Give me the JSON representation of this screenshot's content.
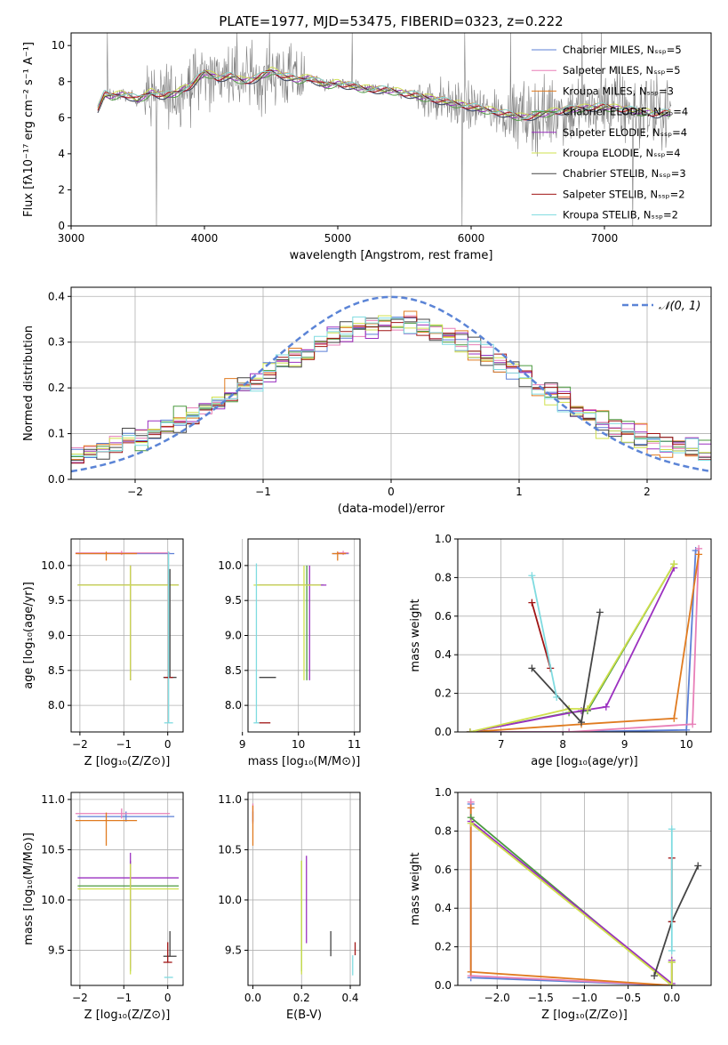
{
  "figure": {
    "title": "PLATE=1977, MJD=53475, FIBERID=0323, z=0.222"
  },
  "series_colors": [
    "#5b7fd6",
    "#e87fb8",
    "#e07b20",
    "#4b9a3f",
    "#9b30c0",
    "#cfe04c",
    "#444444",
    "#a01515",
    "#7fdbe0"
  ],
  "chart_data": [
    {
      "id": "spectrum",
      "type": "line",
      "xlabel": "wavelength [Angstrom, rest frame]",
      "ylabel": "Flux [fλ10⁻¹⁷ erg cm⁻² s⁻¹ A⁻¹]",
      "xlim": [
        3000,
        7800
      ],
      "ylim": [
        0,
        10.7
      ],
      "xticks": [
        3000,
        4000,
        5000,
        6000,
        7000
      ],
      "yticks": [
        0,
        2,
        4,
        6,
        8,
        10
      ],
      "grid": false,
      "legend_position": "right",
      "legend": [
        "Chabrier MILES, Nₛₛₚ=5",
        "Salpeter MILES, Nₛₛₚ=5",
        "Kroupa MILES, Nₛₛₚ=3",
        "Chabrier ELODIE, Nₛₛₚ=4",
        "Salpeter ELODIE, Nₛₛₚ=4",
        "Kroupa ELODIE, Nₛₛₚ=4",
        "Chabrier STELIB, Nₛₛₚ=3",
        "Salpeter STELIB, Nₛₛₚ=2",
        "Kroupa STELIB, Nₛₛₚ=2"
      ],
      "model_continuum": {
        "x": [
          3200,
          3250,
          3300,
          3400,
          3500,
          3600,
          3700,
          3800,
          3900,
          4000,
          4100,
          4200,
          4300,
          4400,
          4500,
          4600,
          4700,
          4800,
          4900,
          5000,
          5200,
          5400,
          5600,
          5800,
          6000,
          6200,
          6400,
          6600,
          6800,
          7000,
          7200,
          7400,
          7500
        ],
        "y": [
          6.5,
          7.3,
          7.2,
          7.3,
          7.0,
          7.4,
          7.2,
          7.4,
          7.8,
          8.5,
          8.2,
          8.3,
          8.0,
          8.2,
          8.6,
          8.3,
          8.1,
          8.2,
          7.8,
          7.9,
          7.6,
          7.5,
          7.2,
          6.9,
          6.6,
          6.3,
          6.0,
          6.3,
          6.5,
          6.6,
          6.4,
          6.2,
          6.3
        ]
      },
      "observed_color": "#808080"
    },
    {
      "id": "residual-hist",
      "type": "line",
      "xlabel": "(data-model)/error",
      "ylabel": "Normed distribution",
      "xlim": [
        -2.5,
        2.5
      ],
      "ylim": [
        0,
        0.42
      ],
      "xticks": [
        -2,
        -1,
        0,
        1,
        2
      ],
      "yticks": [
        0.0,
        0.1,
        0.2,
        0.3,
        0.4
      ],
      "grid": true,
      "legend_position": "top-right",
      "legend": [
        "𝒩(0, 1)"
      ],
      "gaussian": {
        "mean": 0,
        "sigma": 1,
        "color": "#5b84d6"
      }
    },
    {
      "id": "age-vs-Z",
      "type": "scatter",
      "xlabel": "Z [log₁₀(Z/Z⊙)]",
      "ylabel": "age  [log₁₀(age/yr)]",
      "xlim": [
        -2.2,
        0.35
      ],
      "ylim": [
        7.62,
        10.38
      ],
      "xticks": [
        -2,
        -1,
        0
      ],
      "yticks": [
        8.0,
        8.5,
        9.0,
        9.5,
        10.0
      ],
      "grid": true,
      "points": [
        {
          "series": 0,
          "x": -0.95,
          "y": 10.17,
          "xerr": [
            1.1,
            1.1
          ],
          "yerr": [
            0,
            0
          ]
        },
        {
          "series": 1,
          "x": -1.05,
          "y": 10.18,
          "xerr": [
            1.05,
            1.1
          ],
          "yerr": [
            0.03,
            0.03
          ]
        },
        {
          "series": 2,
          "x": -1.4,
          "y": 10.17,
          "xerr": [
            0.7,
            0.7
          ],
          "yerr": [
            0.1,
            0.03
          ]
        },
        {
          "series": 3,
          "x": -0.85,
          "y": 9.72,
          "xerr": [
            1.2,
            1.1
          ],
          "yerr": [
            1.36,
            0.28
          ]
        },
        {
          "series": 4,
          "x": -0.85,
          "y": 9.72,
          "xerr": [
            1.2,
            1.1
          ],
          "yerr": [
            1.36,
            0.28
          ]
        },
        {
          "series": 5,
          "x": -0.85,
          "y": 9.72,
          "xerr": [
            1.2,
            1.1
          ],
          "yerr": [
            1.36,
            0.28
          ]
        },
        {
          "series": 6,
          "x": 0.05,
          "y": 8.4,
          "xerr": [
            0.15,
            0.15
          ],
          "yerr": [
            0,
            1.55
          ]
        },
        {
          "series": 7,
          "x": 0.02,
          "y": 8.4,
          "xerr": [
            0.1,
            0.1
          ],
          "yerr": [
            0,
            0
          ]
        },
        {
          "series": 8,
          "x": 0.02,
          "y": 7.75,
          "xerr": [
            0.1,
            0.1
          ],
          "yerr": [
            0,
            2.45
          ]
        }
      ]
    },
    {
      "id": "age-vs-mass",
      "type": "scatter",
      "xlabel": "mass [log₁₀(M/M⊙)]",
      "ylabel": "",
      "xlim": [
        9.1,
        11.1
      ],
      "ylim": [
        7.62,
        10.38
      ],
      "xticks": [
        9,
        10,
        11
      ],
      "yticks": [
        8.0,
        8.5,
        9.0,
        9.5,
        10.0
      ],
      "grid": true,
      "points": [
        {
          "series": 0,
          "x": 10.75,
          "y": 10.17,
          "xerr": [
            0.15,
            0.15
          ],
          "yerr": [
            0,
            0
          ]
        },
        {
          "series": 1,
          "x": 10.8,
          "y": 10.18,
          "xerr": [
            0.1,
            0.1
          ],
          "yerr": [
            0.03,
            0.03
          ]
        },
        {
          "series": 2,
          "x": 10.7,
          "y": 10.17,
          "xerr": [
            0.1,
            0.15
          ],
          "yerr": [
            0.1,
            0.03
          ]
        },
        {
          "series": 3,
          "x": 10.15,
          "y": 9.72,
          "xerr": [
            0.9,
            0.3
          ],
          "yerr": [
            1.36,
            0.28
          ]
        },
        {
          "series": 4,
          "x": 10.2,
          "y": 9.72,
          "xerr": [
            0.9,
            0.3
          ],
          "yerr": [
            1.36,
            0.28
          ]
        },
        {
          "series": 5,
          "x": 10.1,
          "y": 9.72,
          "xerr": [
            0.9,
            0.3
          ],
          "yerr": [
            1.36,
            0.28
          ]
        },
        {
          "series": 6,
          "x": 9.45,
          "y": 8.4,
          "xerr": [
            0.15,
            0.15
          ],
          "yerr": [
            0,
            0
          ]
        },
        {
          "series": 7,
          "x": 9.4,
          "y": 7.75,
          "xerr": [
            0.1,
            0.1
          ],
          "yerr": [
            0,
            0
          ]
        },
        {
          "series": 8,
          "x": 9.25,
          "y": 7.75,
          "xerr": [
            0.05,
            0.05
          ],
          "yerr": [
            0,
            2.28
          ]
        }
      ]
    },
    {
      "id": "weight-vs-age",
      "type": "line",
      "xlabel": "age  [log₁₀(age/yr)]",
      "ylabel": "mass weight",
      "xlim": [
        6.3,
        10.4
      ],
      "ylim": [
        0,
        1.0
      ],
      "xticks": [
        7,
        8,
        9,
        10
      ],
      "yticks": [
        0.0,
        0.2,
        0.4,
        0.6,
        0.8,
        1.0
      ],
      "grid": true,
      "series": [
        {
          "series": 0,
          "x": [
            6.5,
            8.1,
            10.0,
            10.15
          ],
          "y": [
            0.0,
            0.0,
            0.01,
            0.94
          ]
        },
        {
          "series": 1,
          "x": [
            6.5,
            8.1,
            10.1,
            10.2
          ],
          "y": [
            0.0,
            0.0,
            0.04,
            0.95
          ]
        },
        {
          "series": 2,
          "x": [
            6.5,
            8.3,
            9.8,
            10.2
          ],
          "y": [
            0.0,
            0.04,
            0.07,
            0.92
          ]
        },
        {
          "series": 3,
          "x": [
            6.5,
            8.1,
            8.4,
            9.8
          ],
          "y": [
            0.0,
            0.1,
            0.11,
            0.87
          ]
        },
        {
          "series": 4,
          "x": [
            6.5,
            8.3,
            8.7,
            9.8
          ],
          "y": [
            0.0,
            0.11,
            0.13,
            0.85
          ]
        },
        {
          "series": 5,
          "x": [
            6.5,
            8.1,
            8.4,
            9.8
          ],
          "y": [
            0.0,
            0.12,
            0.12,
            0.87
          ]
        },
        {
          "series": 6,
          "x": [
            7.5,
            8.3,
            8.6
          ],
          "y": [
            0.33,
            0.05,
            0.62
          ]
        },
        {
          "series": 7,
          "x": [
            7.5,
            7.8
          ],
          "y": [
            0.67,
            0.33
          ]
        },
        {
          "series": 8,
          "x": [
            7.5,
            7.9
          ],
          "y": [
            0.81,
            0.18
          ]
        }
      ]
    },
    {
      "id": "mass-vs-Z",
      "type": "scatter",
      "xlabel": "Z [log₁₀(Z/Z⊙)]",
      "ylabel": "mass [log₁₀(M/M⊙)]",
      "xlim": [
        -2.2,
        0.35
      ],
      "ylim": [
        9.15,
        11.07
      ],
      "xticks": [
        -2,
        -1,
        0
      ],
      "yticks": [
        9.5,
        10.0,
        10.5,
        11.0
      ],
      "grid": true,
      "points": [
        {
          "series": 0,
          "x": -0.95,
          "y": 10.83,
          "xerr": [
            1.1,
            1.1
          ],
          "yerr": [
            0.05,
            0.05
          ]
        },
        {
          "series": 1,
          "x": -1.05,
          "y": 10.86,
          "xerr": [
            1.05,
            1.1
          ],
          "yerr": [
            0.05,
            0.05
          ]
        },
        {
          "series": 2,
          "x": -1.4,
          "y": 10.79,
          "xerr": [
            0.7,
            0.7
          ],
          "yerr": [
            0.25,
            0.08
          ]
        },
        {
          "series": 3,
          "x": -0.85,
          "y": 10.14,
          "xerr": [
            1.2,
            1.1
          ],
          "yerr": [
            0.85,
            0.25
          ]
        },
        {
          "series": 4,
          "x": -0.85,
          "y": 10.22,
          "xerr": [
            1.2,
            1.1
          ],
          "yerr": [
            0.9,
            0.25
          ]
        },
        {
          "series": 5,
          "x": -0.85,
          "y": 10.11,
          "xerr": [
            1.2,
            1.1
          ],
          "yerr": [
            0.85,
            0.25
          ]
        },
        {
          "series": 6,
          "x": 0.05,
          "y": 9.44,
          "xerr": [
            0.15,
            0.15
          ],
          "yerr": [
            0,
            0.25
          ]
        },
        {
          "series": 7,
          "x": 0.0,
          "y": 9.38,
          "xerr": [
            0.1,
            0.1
          ],
          "yerr": [
            0,
            0.2
          ]
        },
        {
          "series": 8,
          "x": 0.02,
          "y": 9.23,
          "xerr": [
            0.1,
            0.1
          ],
          "yerr": [
            0,
            0
          ]
        }
      ]
    },
    {
      "id": "mass-vs-ebv",
      "type": "scatter",
      "xlabel": "E(B-V)",
      "ylabel": "",
      "xlim": [
        -0.02,
        0.44
      ],
      "ylim": [
        9.15,
        11.07
      ],
      "xticks": [
        0.0,
        0.2,
        0.4
      ],
      "yticks": [
        9.5,
        10.0,
        10.5,
        11.0
      ],
      "grid": true,
      "points": [
        {
          "series": 0,
          "x": 0.0,
          "y": 10.83,
          "xerr": [
            0,
            0
          ],
          "yerr": [
            0.05,
            0.05
          ]
        },
        {
          "series": 1,
          "x": 0.0,
          "y": 10.86,
          "xerr": [
            0,
            0
          ],
          "yerr": [
            0.1,
            0.1
          ]
        },
        {
          "series": 2,
          "x": 0.0,
          "y": 10.79,
          "xerr": [
            0,
            0
          ],
          "yerr": [
            0.25,
            0.15
          ]
        },
        {
          "series": 3,
          "x": 0.2,
          "y": 10.14,
          "xerr": [
            0,
            0
          ],
          "yerr": [
            0.85,
            0.25
          ]
        },
        {
          "series": 4,
          "x": 0.22,
          "y": 10.22,
          "xerr": [
            0,
            0
          ],
          "yerr": [
            0.65,
            0.22
          ]
        },
        {
          "series": 5,
          "x": 0.2,
          "y": 10.11,
          "xerr": [
            0,
            0
          ],
          "yerr": [
            0.85,
            0.28
          ]
        },
        {
          "series": 6,
          "x": 0.32,
          "y": 9.44,
          "xerr": [
            0,
            0
          ],
          "yerr": [
            0,
            0.25
          ]
        },
        {
          "series": 7,
          "x": 0.42,
          "y": 9.5,
          "xerr": [
            0,
            0
          ],
          "yerr": [
            0.05,
            0.08
          ]
        },
        {
          "series": 8,
          "x": 0.41,
          "y": 9.4,
          "xerr": [
            0,
            0
          ],
          "yerr": [
            0.15,
            0.05
          ]
        }
      ]
    },
    {
      "id": "weight-vs-Z",
      "type": "line",
      "xlabel": "Z [log₁₀(Z/Z⊙)]",
      "ylabel": "mass weight",
      "xlim": [
        -2.45,
        0.45
      ],
      "ylim": [
        0,
        1.0
      ],
      "xticks": [
        -2.0,
        -1.5,
        -1.0,
        -0.5,
        0.0
      ],
      "yticks": [
        0.0,
        0.2,
        0.4,
        0.6,
        0.8,
        1.0
      ],
      "grid": true,
      "series": [
        {
          "series": 0,
          "x": [
            -2.3,
            -2.3,
            0.0
          ],
          "y": [
            0.94,
            0.04,
            0.0
          ]
        },
        {
          "series": 1,
          "x": [
            -2.3,
            -2.3,
            0.0
          ],
          "y": [
            0.95,
            0.05,
            0.0
          ]
        },
        {
          "series": 2,
          "x": [
            -2.3,
            -2.3,
            0.0
          ],
          "y": [
            0.92,
            0.07,
            0.0
          ]
        },
        {
          "series": 3,
          "x": [
            -2.3,
            0.0,
            0.0
          ],
          "y": [
            0.87,
            0.0,
            0.12
          ]
        },
        {
          "series": 4,
          "x": [
            -2.3,
            0.0,
            0.0
          ],
          "y": [
            0.85,
            0.01,
            0.13
          ]
        },
        {
          "series": 5,
          "x": [
            -2.3,
            0.0,
            0.0
          ],
          "y": [
            0.84,
            0.0,
            0.12
          ]
        },
        {
          "series": 6,
          "x": [
            -0.2,
            0.0,
            0.3
          ],
          "y": [
            0.05,
            0.33,
            0.62
          ]
        },
        {
          "series": 7,
          "x": [
            0.0,
            0.0
          ],
          "y": [
            0.33,
            0.66
          ]
        },
        {
          "series": 8,
          "x": [
            0.0,
            0.0
          ],
          "y": [
            0.18,
            0.81
          ]
        }
      ]
    }
  ]
}
